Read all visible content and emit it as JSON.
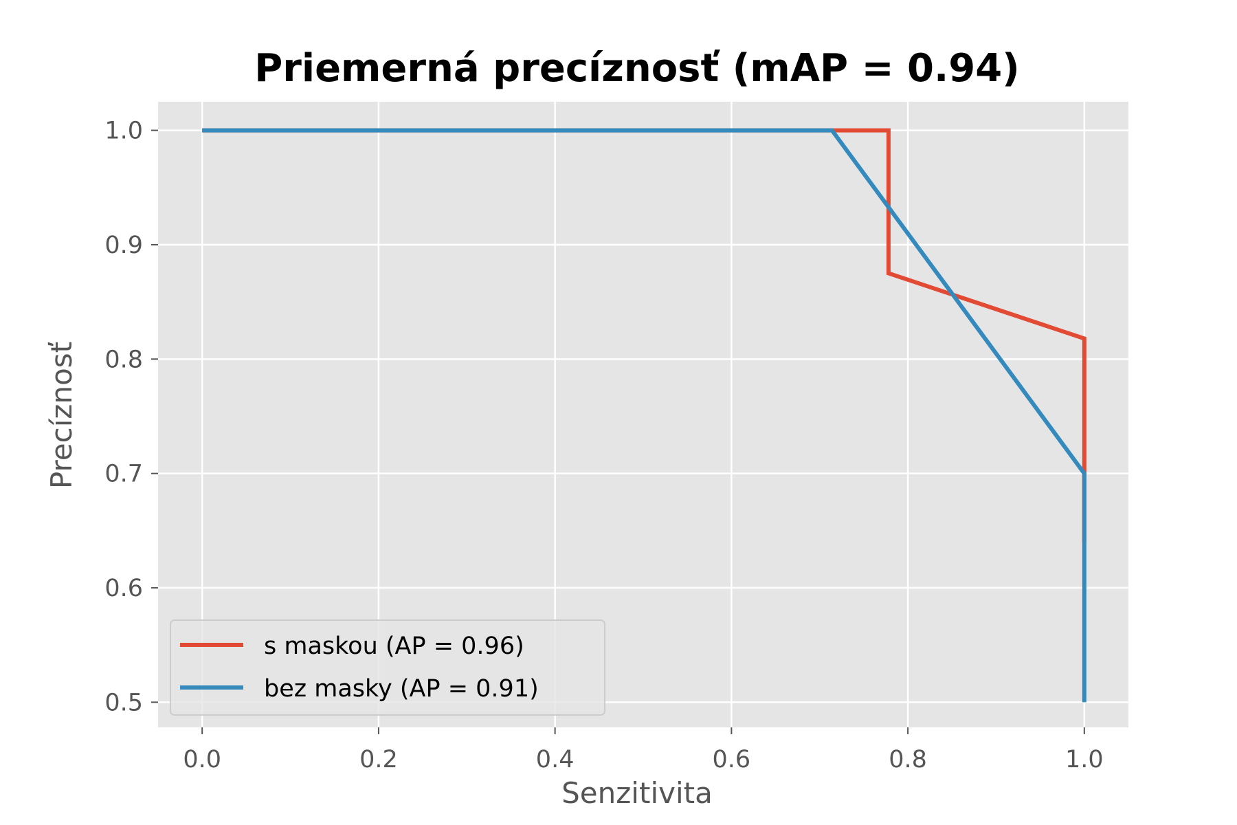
{
  "chart_data": {
    "type": "line",
    "title": "Priemerná precíznosť (mAP = 0.94)",
    "xlabel": "Senzitivita",
    "ylabel": "Precíznosť",
    "xlim": [
      -0.05,
      1.05
    ],
    "ylim": [
      0.478,
      1.025
    ],
    "xticks": [
      0.0,
      0.2,
      0.4,
      0.6,
      0.8,
      1.0
    ],
    "xtick_labels": [
      "0.0",
      "0.2",
      "0.4",
      "0.6",
      "0.8",
      "1.0"
    ],
    "yticks": [
      0.5,
      0.6,
      0.7,
      0.8,
      0.9,
      1.0
    ],
    "ytick_labels": [
      "0.5",
      "0.6",
      "0.7",
      "0.8",
      "0.9",
      "1.0"
    ],
    "grid": true,
    "legend_position": "lower-left",
    "background": "#e5e5e5",
    "series": [
      {
        "name": "s maskou (AP = 0.96)",
        "color": "#e24a33",
        "x": [
          0.0,
          0.778,
          0.778,
          1.0,
          1.0,
          1.0
        ],
        "y": [
          1.0,
          1.0,
          0.875,
          0.818,
          0.7,
          0.64
        ]
      },
      {
        "name": "bez masky (AP = 0.91)",
        "color": "#348abd",
        "x": [
          0.0,
          0.714,
          1.0,
          1.0
        ],
        "y": [
          1.0,
          1.0,
          0.7,
          0.5
        ]
      }
    ]
  }
}
